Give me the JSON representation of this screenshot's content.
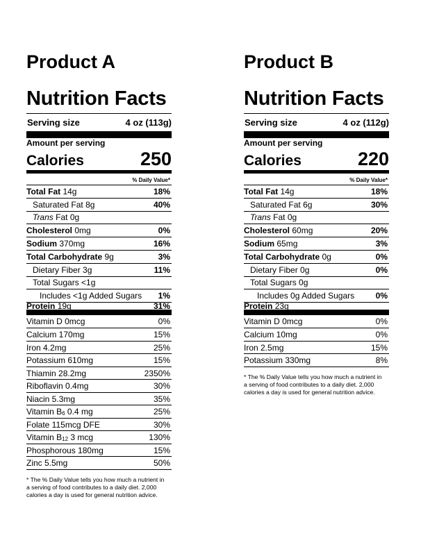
{
  "labels": [
    {
      "product": "Product A",
      "title": "Nutrition Facts",
      "serving_label": "Serving size",
      "serving_value": "4 oz (113g)",
      "amount_label": "Amount per serving",
      "calories_label": "Calories",
      "calories_value": "250",
      "dv_header": "% Daily Value*",
      "nutrients": [
        {
          "name": "Total Fat",
          "amount": "14g",
          "pct": "18%"
        },
        {
          "name": "Saturated Fat",
          "amount": "8g",
          "pct": "40%"
        },
        {
          "name": "Trans",
          "amount": "0g",
          "pct": ""
        },
        {
          "name": "Cholesterol",
          "amount": "0mg",
          "pct": "0%"
        },
        {
          "name": "Sodium",
          "amount": "370mg",
          "pct": "16%"
        },
        {
          "name": "Total Carbohydrate",
          "amount": "9g",
          "pct": "3%"
        },
        {
          "name": "Dietary Fiber",
          "amount": "3g",
          "pct": "11%"
        },
        {
          "name": "Total Sugars",
          "amount": "<1g",
          "pct": ""
        },
        {
          "name": "Includes",
          "amount": "<1g Added Sugars",
          "pct": "1%"
        },
        {
          "name": "Protein",
          "amount": "19g",
          "pct": "31%"
        }
      ],
      "vitamins": [
        {
          "name": "Vitamin D 0mcg",
          "pct": "0%"
        },
        {
          "name": "Calcium 170mg",
          "pct": "15%"
        },
        {
          "name": "Iron 4.2mg",
          "pct": "25%"
        },
        {
          "name": "Potassium 610mg",
          "pct": "15%"
        },
        {
          "name": "Thiamin 28.2mg",
          "pct": "2350%"
        },
        {
          "name": "Riboflavin 0.4mg",
          "pct": "30%"
        },
        {
          "name": "Niacin 5.3mg",
          "pct": "35%"
        },
        {
          "name": "Vitamin B6 0.4 mg",
          "pct": "25%"
        },
        {
          "name": "Folate 115mcg DFE",
          "pct": "30%"
        },
        {
          "name": "Vitamin B12 3 mcg",
          "pct": "130%"
        },
        {
          "name": "Phosphorous 180mg",
          "pct": "15%"
        },
        {
          "name": "Zinc 5.5mg",
          "pct": "50%"
        }
      ],
      "footnote": "* The % Daily Value tells you how much a nutrient in a serving of food contributes to a daily diet. 2,000 calories a day is used for general nutrition advice."
    },
    {
      "product": "Product B",
      "title": "Nutrition Facts",
      "serving_label": "Serving size",
      "serving_value": "4 oz (112g)",
      "amount_label": "Amount per serving",
      "calories_label": "Calories",
      "calories_value": "220",
      "dv_header": "% Daily Value*",
      "nutrients": [
        {
          "name": "Total Fat",
          "amount": "14g",
          "pct": "18%"
        },
        {
          "name": "Saturated Fat",
          "amount": "6g",
          "pct": "30%"
        },
        {
          "name": "Trans",
          "amount": "0g",
          "pct": ""
        },
        {
          "name": "Cholesterol",
          "amount": "60mg",
          "pct": "20%"
        },
        {
          "name": "Sodium",
          "amount": "65mg",
          "pct": "3%"
        },
        {
          "name": "Total Carbohydrate",
          "amount": "0g",
          "pct": "0%"
        },
        {
          "name": "Dietary Fiber",
          "amount": "0g",
          "pct": "0%"
        },
        {
          "name": "Total Sugars",
          "amount": "0g",
          "pct": ""
        },
        {
          "name": "Includes",
          "amount": "0g Added Sugars",
          "pct": "0%"
        },
        {
          "name": "Protein",
          "amount": "23g",
          "pct": ""
        }
      ],
      "vitamins": [
        {
          "name": "Vitamin D 0mcg",
          "pct": "0%"
        },
        {
          "name": "Calcium 10mg",
          "pct": "0%"
        },
        {
          "name": "Iron 2.5mg",
          "pct": "15%"
        },
        {
          "name": "Potassium 330mg",
          "pct": "8%"
        }
      ],
      "footnote": "* The % Daily Value tells you how much a nutrient in a serving of food contributes to a daily diet. 2,000 calories a day is used for general nutrition advice."
    }
  ]
}
